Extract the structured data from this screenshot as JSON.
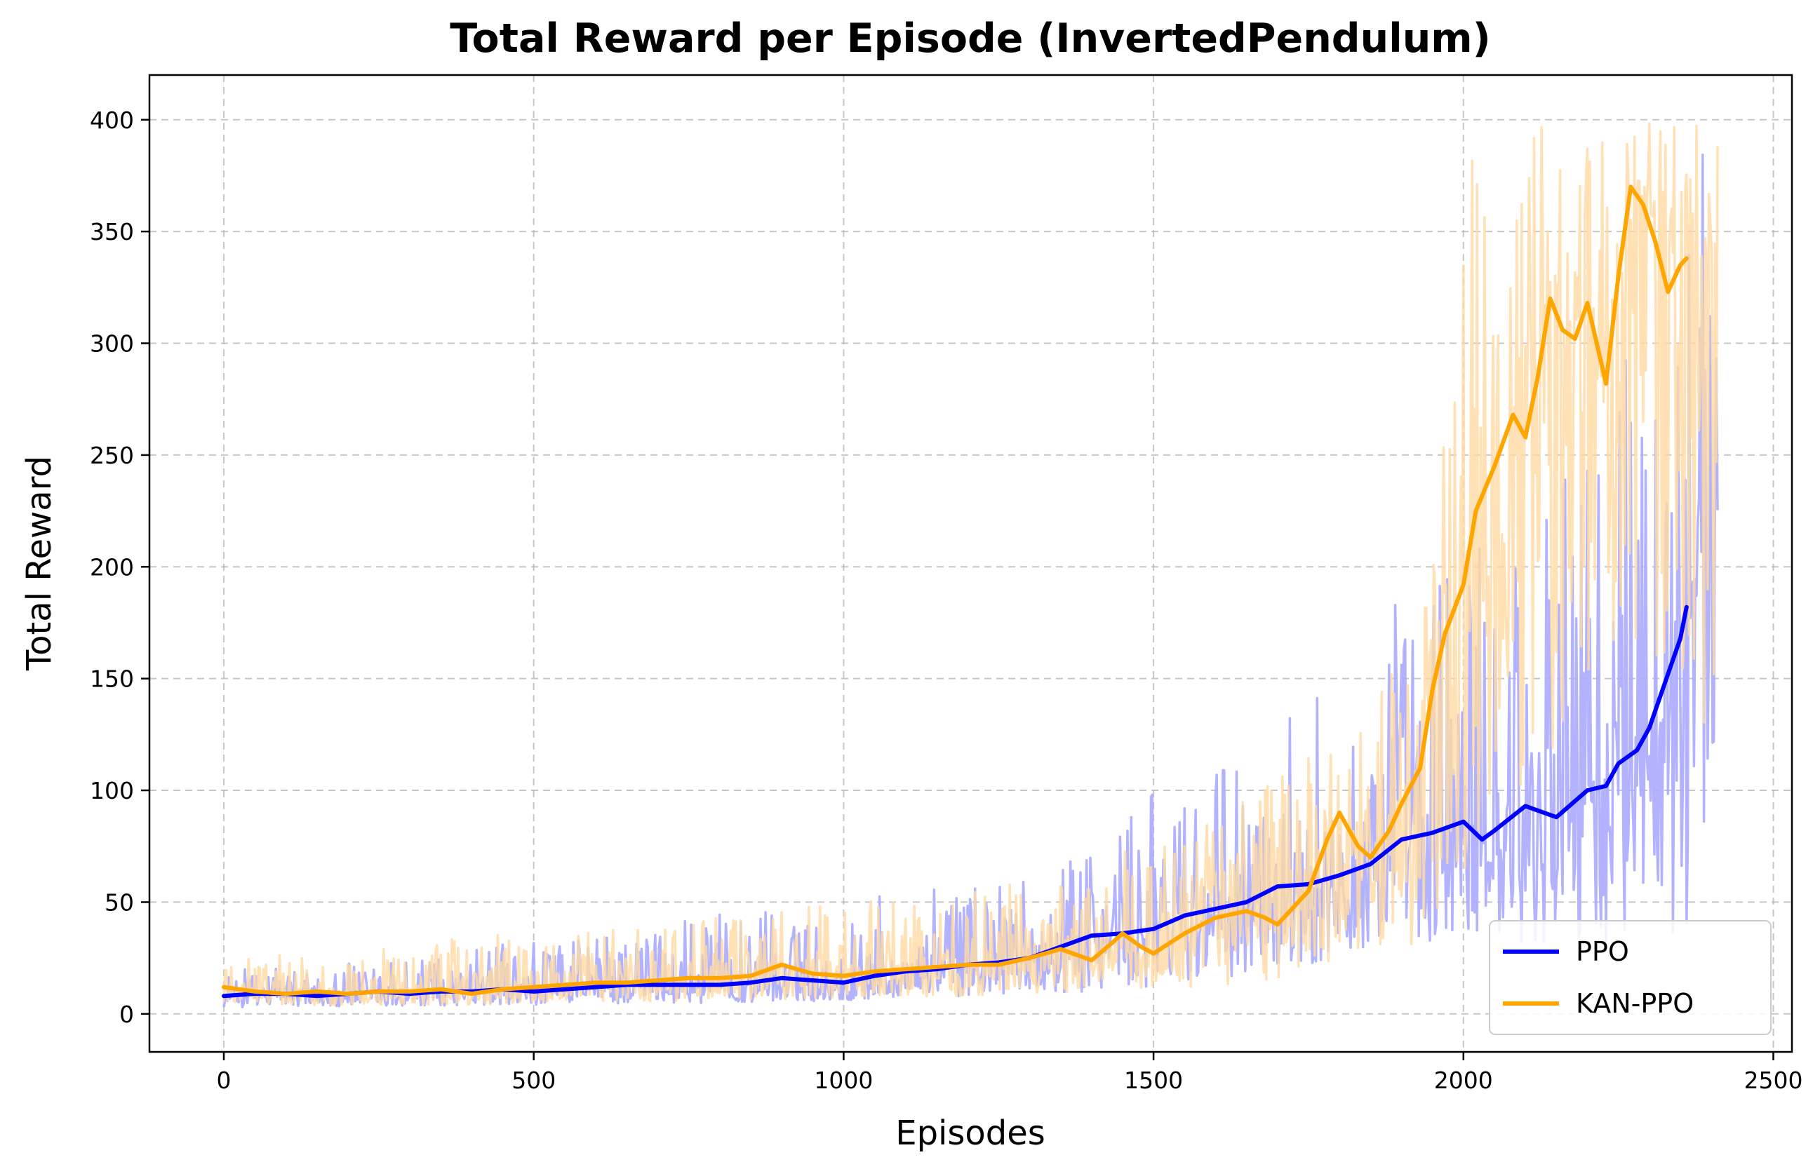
{
  "chart_data": {
    "type": "line",
    "title": "Total Reward per Episode (InvertedPendulum)",
    "xlabel": "Episodes",
    "ylabel": "Total Reward",
    "xlim": [
      -120,
      2530
    ],
    "ylim": [
      -17,
      420
    ],
    "x_ticks": [
      0,
      500,
      1000,
      1500,
      2000,
      2500
    ],
    "y_ticks": [
      0,
      50,
      100,
      150,
      200,
      250,
      300,
      350,
      400
    ],
    "grid": true,
    "legend_position": "lower-right",
    "series": [
      {
        "name": "PPO",
        "color": "#0000ff",
        "raw_color": "#aaaaff",
        "raw_episode_range": [
          0,
          2410
        ],
        "raw_envelope": {
          "x": [
            0,
            200,
            400,
            600,
            800,
            1000,
            1200,
            1400,
            1500,
            1600,
            1700,
            1800,
            1900,
            2000,
            2100,
            2200,
            2300,
            2400
          ],
          "low": [
            3,
            3,
            4,
            4,
            5,
            6,
            8,
            10,
            12,
            15,
            20,
            25,
            30,
            32,
            30,
            28,
            30,
            40
          ],
          "high": [
            20,
            24,
            30,
            35,
            45,
            50,
            60,
            70,
            100,
            110,
            130,
            150,
            190,
            210,
            230,
            250,
            320,
            400
          ]
        },
        "smoothed": {
          "x": [
            0,
            50,
            100,
            150,
            200,
            250,
            300,
            350,
            400,
            450,
            500,
            550,
            600,
            650,
            700,
            750,
            800,
            850,
            900,
            950,
            1000,
            1050,
            1100,
            1150,
            1200,
            1250,
            1300,
            1350,
            1400,
            1450,
            1500,
            1550,
            1600,
            1650,
            1700,
            1750,
            1800,
            1850,
            1900,
            1950,
            2000,
            2030,
            2050,
            2100,
            2150,
            2200,
            2230,
            2250,
            2280,
            2300,
            2330,
            2350,
            2360
          ],
          "y": [
            8,
            9,
            9,
            8,
            9,
            10,
            9,
            10,
            10,
            11,
            10,
            11,
            12,
            13,
            13,
            13,
            13,
            14,
            16,
            15,
            14,
            17,
            19,
            20,
            22,
            23,
            25,
            30,
            35,
            36,
            38,
            44,
            47,
            50,
            57,
            58,
            62,
            67,
            78,
            81,
            86,
            78,
            82,
            93,
            88,
            100,
            102,
            112,
            118,
            128,
            152,
            168,
            182
          ]
        }
      },
      {
        "name": "KAN-PPO",
        "color": "#ffa500",
        "raw_color": "#ffd9a3",
        "raw_episode_range": [
          0,
          2410
        ],
        "raw_envelope": {
          "x": [
            0,
            200,
            400,
            600,
            800,
            1000,
            1200,
            1400,
            1500,
            1600,
            1700,
            1800,
            1900,
            1950,
            2000,
            2050,
            2100,
            2200,
            2300,
            2400
          ],
          "low": [
            4,
            4,
            4,
            5,
            6,
            7,
            8,
            10,
            12,
            10,
            15,
            20,
            25,
            30,
            60,
            90,
            100,
            130,
            160,
            120
          ],
          "high": [
            25,
            28,
            35,
            40,
            45,
            50,
            55,
            65,
            80,
            90,
            110,
            120,
            160,
            200,
            400,
            400,
            400,
            400,
            400,
            400
          ]
        },
        "smoothed": {
          "x": [
            0,
            50,
            100,
            150,
            200,
            250,
            300,
            350,
            400,
            450,
            500,
            550,
            600,
            650,
            700,
            750,
            800,
            850,
            900,
            950,
            1000,
            1050,
            1100,
            1150,
            1200,
            1250,
            1300,
            1350,
            1400,
            1430,
            1450,
            1480,
            1500,
            1550,
            1600,
            1650,
            1680,
            1700,
            1750,
            1780,
            1800,
            1830,
            1850,
            1880,
            1900,
            1930,
            1950,
            1970,
            2000,
            2020,
            2050,
            2080,
            2100,
            2120,
            2140,
            2160,
            2180,
            2200,
            2230,
            2250,
            2270,
            2290,
            2310,
            2330,
            2350,
            2360
          ],
          "y": [
            12,
            10,
            9,
            10,
            9,
            10,
            10,
            11,
            9,
            11,
            12,
            13,
            14,
            14,
            15,
            16,
            16,
            17,
            22,
            18,
            17,
            19,
            20,
            21,
            22,
            22,
            25,
            29,
            24,
            31,
            36,
            30,
            27,
            36,
            43,
            46,
            43,
            40,
            55,
            78,
            90,
            75,
            70,
            82,
            94,
            110,
            145,
            170,
            192,
            225,
            245,
            268,
            258,
            285,
            320,
            306,
            302,
            318,
            282,
            330,
            370,
            362,
            345,
            323,
            335,
            338
          ]
        }
      }
    ]
  }
}
